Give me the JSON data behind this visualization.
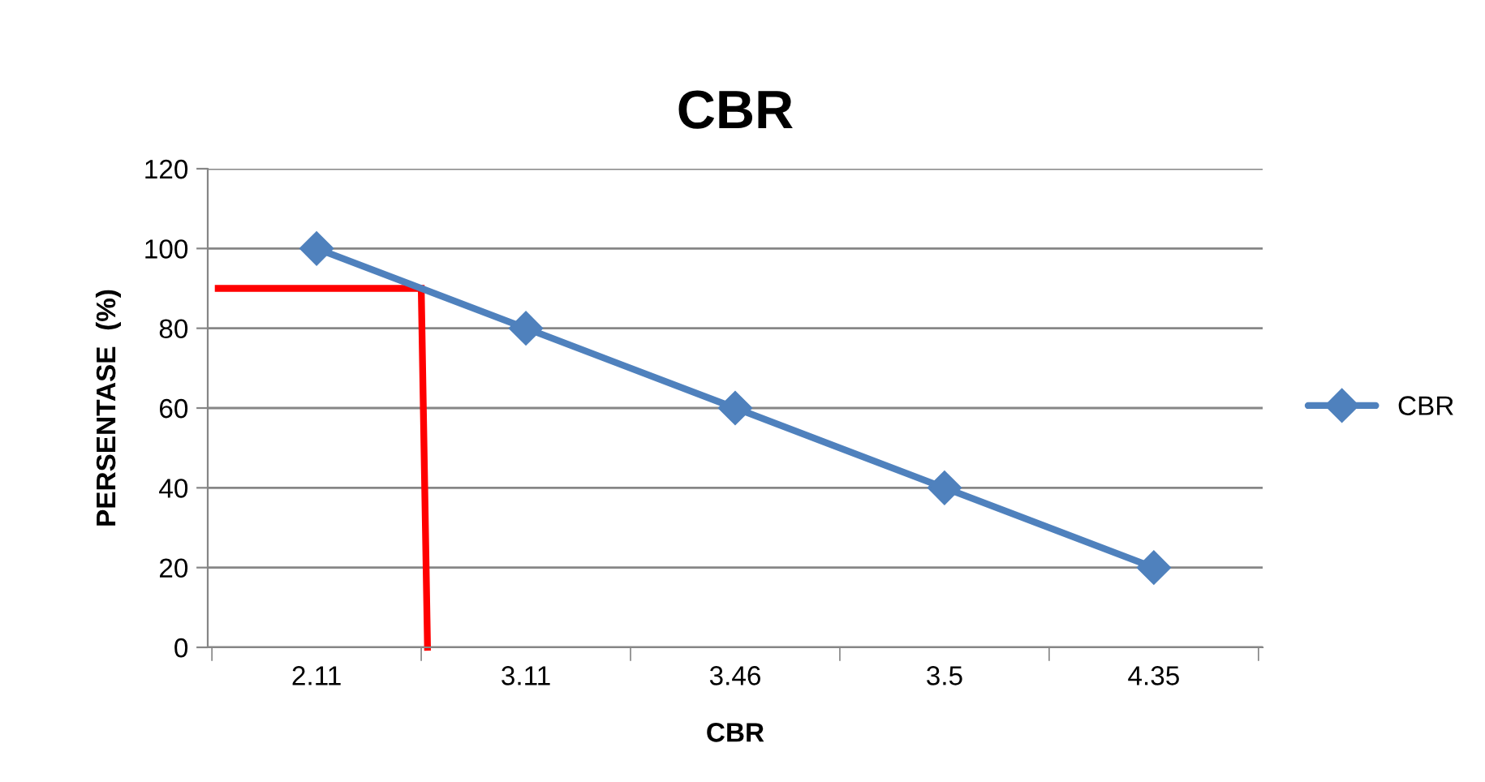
{
  "chart_data": {
    "type": "line",
    "title": "CBR",
    "xlabel": "CBR",
    "ylabel": "PERSENTASE  (%)",
    "categories": [
      "2.11",
      "3.11",
      "3.46",
      "3.5",
      "4.35"
    ],
    "series": [
      {
        "name": "CBR",
        "color": "#4f81bd",
        "values": [
          100,
          80,
          60,
          40,
          20
        ]
      }
    ],
    "ylim": [
      0,
      120
    ],
    "yticks": [
      0,
      20,
      40,
      60,
      80,
      100,
      120
    ],
    "grid": "y",
    "legend": "right",
    "marker": "diamond",
    "line_style": "solid",
    "ref_lines": [
      {
        "axis": "y",
        "value": 90,
        "color": "#ff0000"
      }
    ]
  }
}
